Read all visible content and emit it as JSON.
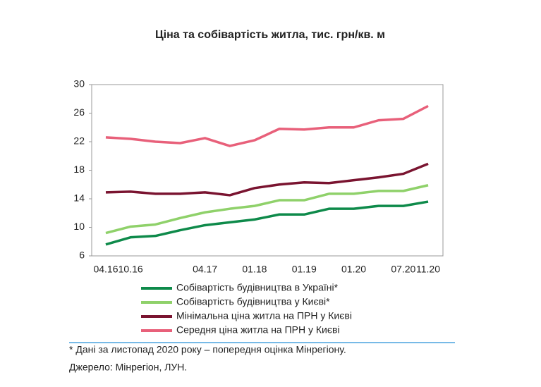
{
  "chart_data": {
    "type": "line",
    "title": "Ціна та собівартість житла, тис. грн/кв. м",
    "categories": [
      "04.16",
      "10.16",
      null,
      null,
      "04.17",
      null,
      "01.18",
      null,
      "01.19",
      null,
      "01.20",
      null,
      "07.20",
      "11.20"
    ],
    "series": [
      {
        "name": "Собівартість будівництва в Україні*",
        "color": "#0e8a4a",
        "values": [
          7.6,
          8.6,
          8.8,
          9.6,
          10.3,
          10.7,
          11.1,
          11.8,
          11.8,
          12.6,
          12.6,
          13.0,
          13.0,
          13.6
        ]
      },
      {
        "name": "Собівартість будівництва у Києві*",
        "color": "#8fd16a",
        "values": [
          9.2,
          10.1,
          10.4,
          11.3,
          12.1,
          12.6,
          13.0,
          13.8,
          13.8,
          14.7,
          14.7,
          15.1,
          15.1,
          15.9
        ]
      },
      {
        "name": "Мінімальна ціна житла на ПРН у Києві",
        "color": "#7a1430",
        "values": [
          14.9,
          15.0,
          14.7,
          14.7,
          14.9,
          14.5,
          15.5,
          16.0,
          16.3,
          16.2,
          16.6,
          17.0,
          17.5,
          18.9
        ]
      },
      {
        "name": "Середня ціна житла на ПРН у Києві",
        "color": "#e8607a",
        "values": [
          22.6,
          22.4,
          22.0,
          21.8,
          22.5,
          21.4,
          22.2,
          23.8,
          23.7,
          24.0,
          24.0,
          25.0,
          25.2,
          27.0
        ]
      }
    ],
    "ylim": [
      6,
      30
    ],
    "yticks": [
      6,
      10,
      14,
      18,
      22,
      26,
      30
    ],
    "footnote": "* Дані за листопад 2020 року – попередня оцінка Мінрегіону.",
    "source": "Джерело: Мінрегіон, ЛУН."
  }
}
